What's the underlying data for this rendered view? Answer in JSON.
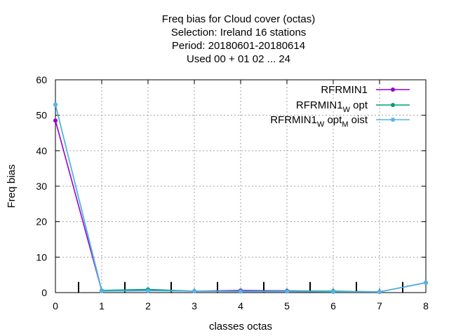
{
  "chart_data": {
    "type": "line",
    "title_lines": [
      "Freq bias  for Cloud cover (octas)",
      "Selection: Ireland     16 stations",
      "Period: 20180601-20180614",
      "Used  00 + 01 02 ... 24"
    ],
    "xlabel": "classes octas",
    "ylabel": "Freq bias",
    "xlim": [
      0,
      8
    ],
    "ylim": [
      0,
      60
    ],
    "xticks": [
      0,
      1,
      2,
      3,
      4,
      5,
      6,
      7,
      8
    ],
    "yticks": [
      0,
      10,
      20,
      30,
      40,
      50,
      60
    ],
    "grid": true,
    "legend_position": "top-right",
    "x": [
      0,
      1,
      2,
      3,
      4,
      5,
      6,
      7,
      8
    ],
    "series": [
      {
        "name": "RFRMIN1",
        "legend": {
          "base": "RFRMIN1",
          "parts": []
        },
        "color": "#9400d3",
        "values": [
          48.5,
          0.5,
          0.6,
          0.4,
          0.6,
          0.5,
          0.3,
          0.2,
          2.8
        ]
      },
      {
        "name": "RFRMIN1_W opt",
        "legend": {
          "base": "RFRMIN1",
          "parts": [
            {
              "sub": "W",
              "text": " opt"
            }
          ]
        },
        "color": "#009e73",
        "values": [
          53.0,
          0.6,
          0.9,
          0.4,
          0.4,
          0.4,
          0.4,
          0.2,
          2.8
        ]
      },
      {
        "name": "RFRMIN1_W opt_M oist",
        "legend": {
          "base": "RFRMIN1",
          "parts": [
            {
              "sub": "W",
              "text": " opt"
            },
            {
              "sub": "M",
              "text": " oist"
            }
          ]
        },
        "color": "#56b4e9",
        "values": [
          53.0,
          0.4,
          0.5,
          0.4,
          0.3,
          0.3,
          0.2,
          0.2,
          2.8
        ]
      }
    ],
    "vertical_markers": {
      "x": [
        0.5,
        1.5,
        2.5,
        3.5,
        4.5,
        5.5,
        6.5,
        7.5
      ],
      "y_top": 3
    }
  }
}
